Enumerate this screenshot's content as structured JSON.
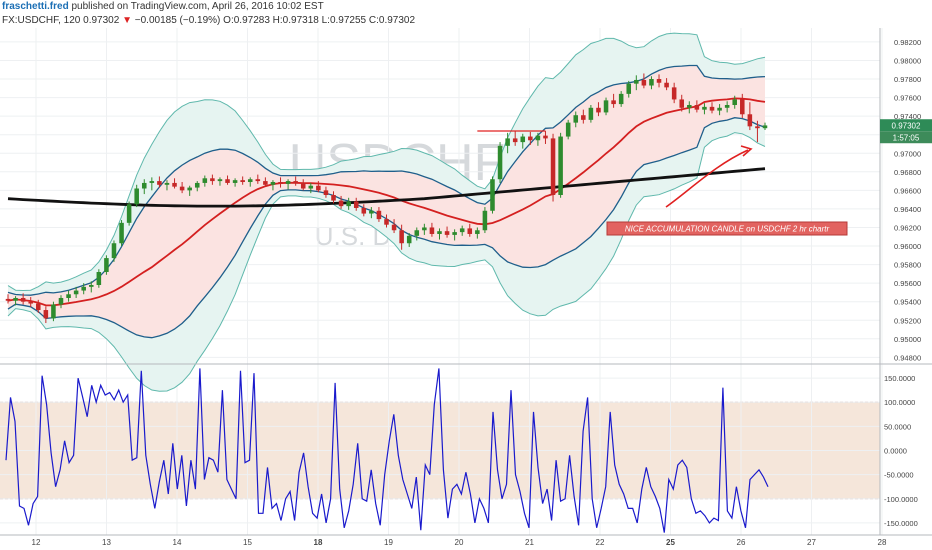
{
  "header": {
    "author": "fraschetti.fred",
    "published": "published on TradingView.com, April 26, 2016 10:02 EST",
    "symbol": "FX:USDCHF, 120",
    "last": "0.97302",
    "change_arrow": "▼",
    "change": "−0.00185 (−0.19%)",
    "open": "O:0.97283",
    "high": "H:0.97318",
    "low": "L:0.97255",
    "close": "C:0.97302"
  },
  "watermark": {
    "symbol": "USDCHF, 120",
    "name": "U.S. Dollar/Swiss Franc"
  },
  "annotation": {
    "text": "NICE ACCUMULATION CANDLE on USDCHF 2 hr chartr"
  },
  "price_badge": {
    "price": "0.97302",
    "time": "1:57:05"
  },
  "colors": {
    "up": "#2e8b2e",
    "down": "#c62828",
    "bb_mid": "#d42020",
    "bb_band": "#1f5f8b",
    "bb_outer": "#5fb8ac",
    "sma": "#111111",
    "osc": "#1a1acc",
    "osc_band": "#f5e6da",
    "badge": "#2e8b57"
  },
  "chart_data": [
    {
      "type": "candlestick",
      "title": "USDCHF, 120",
      "ylim": [
        0.9475,
        0.9835
      ],
      "y_ticks": [
        "0.98200",
        "0.98000",
        "0.97800",
        "0.97600",
        "0.97400",
        "0.97200",
        "0.97000",
        "0.96800",
        "0.96600",
        "0.96400",
        "0.96200",
        "0.96000",
        "0.95800",
        "0.95600",
        "0.95400",
        "0.95200",
        "0.95000",
        "0.94800"
      ],
      "x_ticks": [
        "12",
        "13",
        "14",
        "15",
        "18",
        "19",
        "20",
        "21",
        "22",
        "25",
        "26",
        "27",
        "28"
      ],
      "ohlc": [
        [
          0.9543,
          0.9548,
          0.9538,
          0.9541
        ],
        [
          0.9541,
          0.9546,
          0.9536,
          0.9544
        ],
        [
          0.9544,
          0.9549,
          0.9537,
          0.954
        ],
        [
          0.954,
          0.9545,
          0.9534,
          0.9538
        ],
        [
          0.9538,
          0.9542,
          0.9528,
          0.9531
        ],
        [
          0.9531,
          0.9535,
          0.9517,
          0.9522
        ],
        [
          0.9522,
          0.954,
          0.9519,
          0.9537
        ],
        [
          0.9537,
          0.9547,
          0.9533,
          0.9544
        ],
        [
          0.9544,
          0.9552,
          0.954,
          0.9548
        ],
        [
          0.9548,
          0.9556,
          0.9544,
          0.9552
        ],
        [
          0.9552,
          0.956,
          0.9548,
          0.9556
        ],
        [
          0.9556,
          0.9562,
          0.955,
          0.9558
        ],
        [
          0.9558,
          0.9575,
          0.9555,
          0.9572
        ],
        [
          0.9572,
          0.959,
          0.9569,
          0.9587
        ],
        [
          0.9587,
          0.9606,
          0.9583,
          0.9603
        ],
        [
          0.9603,
          0.9628,
          0.96,
          0.9625
        ],
        [
          0.9625,
          0.9648,
          0.9622,
          0.9645
        ],
        [
          0.9645,
          0.9666,
          0.9642,
          0.9662
        ],
        [
          0.9662,
          0.9672,
          0.9656,
          0.9668
        ],
        [
          0.9668,
          0.9674,
          0.966,
          0.967
        ],
        [
          0.967,
          0.9675,
          0.9663,
          0.9666
        ],
        [
          0.9666,
          0.9671,
          0.966,
          0.9668
        ],
        [
          0.9668,
          0.9673,
          0.9662,
          0.9664
        ],
        [
          0.9664,
          0.9669,
          0.9657,
          0.966
        ],
        [
          0.966,
          0.9665,
          0.9654,
          0.9663
        ],
        [
          0.9663,
          0.967,
          0.9659,
          0.9668
        ],
        [
          0.9668,
          0.9676,
          0.9664,
          0.9673
        ],
        [
          0.9673,
          0.9677,
          0.9666,
          0.967
        ],
        [
          0.967,
          0.9674,
          0.9665,
          0.9672
        ],
        [
          0.9672,
          0.9676,
          0.9666,
          0.9668
        ],
        [
          0.9668,
          0.9673,
          0.9664,
          0.9671
        ],
        [
          0.9671,
          0.9675,
          0.9666,
          0.9669
        ],
        [
          0.9669,
          0.9674,
          0.9664,
          0.9672
        ],
        [
          0.9672,
          0.9677,
          0.9667,
          0.967
        ],
        [
          0.967,
          0.9674,
          0.9664,
          0.9666
        ],
        [
          0.9666,
          0.9671,
          0.966,
          0.9669
        ],
        [
          0.9669,
          0.9674,
          0.9663,
          0.9667
        ],
        [
          0.9667,
          0.9672,
          0.9661,
          0.967
        ],
        [
          0.967,
          0.9675,
          0.9665,
          0.9668
        ],
        [
          0.9668,
          0.9672,
          0.966,
          0.9662
        ],
        [
          0.9662,
          0.9668,
          0.9657,
          0.9665
        ],
        [
          0.9665,
          0.967,
          0.9658,
          0.966
        ],
        [
          0.966,
          0.9664,
          0.9652,
          0.9655
        ],
        [
          0.9655,
          0.9659,
          0.9646,
          0.9649
        ],
        [
          0.9649,
          0.9654,
          0.964,
          0.9643
        ],
        [
          0.9643,
          0.9652,
          0.9639,
          0.9648
        ],
        [
          0.9648,
          0.9652,
          0.9638,
          0.9641
        ],
        [
          0.9641,
          0.9645,
          0.9632,
          0.9635
        ],
        [
          0.9635,
          0.9642,
          0.963,
          0.9638
        ],
        [
          0.9638,
          0.9642,
          0.9626,
          0.9629
        ],
        [
          0.9629,
          0.9634,
          0.962,
          0.9623
        ],
        [
          0.9623,
          0.9629,
          0.9614,
          0.9617
        ],
        [
          0.9617,
          0.9623,
          0.9596,
          0.9603
        ],
        [
          0.9603,
          0.9614,
          0.9599,
          0.9611
        ],
        [
          0.9611,
          0.962,
          0.9606,
          0.9617
        ],
        [
          0.9617,
          0.9624,
          0.9612,
          0.962
        ],
        [
          0.962,
          0.9625,
          0.961,
          0.9613
        ],
        [
          0.9613,
          0.9619,
          0.9607,
          0.9616
        ],
        [
          0.9616,
          0.9621,
          0.9609,
          0.9612
        ],
        [
          0.9612,
          0.9618,
          0.9606,
          0.9615
        ],
        [
          0.9615,
          0.9622,
          0.9611,
          0.9619
        ],
        [
          0.9619,
          0.9624,
          0.961,
          0.9613
        ],
        [
          0.9613,
          0.962,
          0.9608,
          0.9617
        ],
        [
          0.9617,
          0.9642,
          0.9614,
          0.9638
        ],
        [
          0.9638,
          0.9675,
          0.9635,
          0.9672
        ],
        [
          0.9672,
          0.9712,
          0.9668,
          0.9708
        ],
        [
          0.9708,
          0.9722,
          0.97,
          0.9716
        ],
        [
          0.9716,
          0.9724,
          0.9708,
          0.9712
        ],
        [
          0.9712,
          0.9721,
          0.9705,
          0.9718
        ],
        [
          0.9718,
          0.9723,
          0.9709,
          0.9714
        ],
        [
          0.9714,
          0.9722,
          0.9708,
          0.9719
        ],
        [
          0.9719,
          0.9724,
          0.971,
          0.9716
        ],
        [
          0.9716,
          0.9721,
          0.9648,
          0.9655
        ],
        [
          0.9655,
          0.9722,
          0.9652,
          0.9718
        ],
        [
          0.9718,
          0.9736,
          0.9715,
          0.9733
        ],
        [
          0.9733,
          0.9745,
          0.9728,
          0.9741
        ],
        [
          0.9741,
          0.9747,
          0.9732,
          0.9736
        ],
        [
          0.9736,
          0.9752,
          0.9733,
          0.9749
        ],
        [
          0.9749,
          0.9755,
          0.974,
          0.9744
        ],
        [
          0.9744,
          0.976,
          0.9741,
          0.9757
        ],
        [
          0.9757,
          0.9764,
          0.9749,
          0.9753
        ],
        [
          0.9753,
          0.9767,
          0.975,
          0.9764
        ],
        [
          0.9764,
          0.9778,
          0.976,
          0.9775
        ],
        [
          0.9775,
          0.9784,
          0.9768,
          0.9779
        ],
        [
          0.9779,
          0.9786,
          0.977,
          0.9773
        ],
        [
          0.9773,
          0.9783,
          0.9769,
          0.978
        ],
        [
          0.978,
          0.9785,
          0.9771,
          0.9776
        ],
        [
          0.9776,
          0.9781,
          0.9768,
          0.9771
        ],
        [
          0.9771,
          0.9776,
          0.9754,
          0.9758
        ],
        [
          0.9758,
          0.9763,
          0.9745,
          0.9749
        ],
        [
          0.9749,
          0.9756,
          0.9743,
          0.9752
        ],
        [
          0.9752,
          0.9757,
          0.9744,
          0.9747
        ],
        [
          0.9747,
          0.9754,
          0.9742,
          0.975
        ],
        [
          0.975,
          0.9755,
          0.9743,
          0.9746
        ],
        [
          0.9746,
          0.9753,
          0.9741,
          0.9749
        ],
        [
          0.9749,
          0.9756,
          0.9744,
          0.9752
        ],
        [
          0.9752,
          0.9762,
          0.9748,
          0.9758
        ],
        [
          0.9758,
          0.9764,
          0.9738,
          0.9742
        ],
        [
          0.9742,
          0.9755,
          0.9725,
          0.9729
        ],
        [
          0.9729,
          0.9735,
          0.9712,
          0.9727
        ],
        [
          0.9727,
          0.9733,
          0.9725,
          0.973
        ]
      ]
    },
    {
      "type": "line",
      "ylim": [
        -175,
        175
      ],
      "y_ticks": [
        "150.0000",
        "100.0000",
        "50.0000",
        "0.0000",
        "-50.0000",
        "-100.0000",
        "-150.0000"
      ],
      "band": [
        -100,
        100
      ],
      "series": [
        {
          "values": [
            -20,
            110,
            60,
            -115,
            -120,
            -155,
            -110,
            -95,
            155,
            95,
            -5,
            -75,
            -40,
            20,
            -25,
            -10,
            150,
            110,
            70,
            135,
            100,
            135,
            115,
            120,
            105,
            125,
            100,
            115,
            -20,
            -15,
            165,
            -10,
            -70,
            -120,
            -65,
            -20,
            -90,
            15,
            -80,
            -10,
            -115,
            -20,
            -80,
            170,
            -60,
            -15,
            -20,
            -45,
            125,
            -60,
            -80,
            -100,
            165,
            -25,
            -20,
            160,
            -130,
            -130,
            -35,
            -120,
            -110,
            -145,
            -100,
            -85,
            -145,
            -45,
            -5,
            -75,
            -130,
            -140,
            -90,
            -150,
            -100,
            140,
            -80,
            -160,
            -125,
            -70,
            15,
            -100,
            -105,
            -40,
            -110,
            -155,
            -50,
            20,
            75,
            -10,
            -60,
            -90,
            -120,
            -55,
            -165,
            -30,
            -50,
            95,
            170,
            -40,
            -140,
            -80,
            -70,
            -90,
            -45,
            -90,
            -150,
            -100,
            -120,
            -150,
            80,
            -40,
            -100,
            -70,
            125,
            -50,
            -85,
            -130,
            -160,
            80,
            -35,
            -110,
            -80,
            -145,
            -20,
            -105,
            -100,
            -10,
            -95,
            -155,
            40,
            110,
            -100,
            -160,
            -120,
            -75,
            80,
            -30,
            -70,
            -90,
            -120,
            -120,
            -150,
            -80,
            -35,
            -75,
            -95,
            -120,
            -170,
            -60,
            -80,
            -30,
            -20,
            -35,
            -100,
            -130,
            -125,
            -135,
            -150,
            -140,
            -145,
            130,
            -125,
            -140,
            -75,
            -125,
            -160,
            -60,
            -50,
            -40,
            -55,
            -75
          ]
        }
      ]
    }
  ]
}
